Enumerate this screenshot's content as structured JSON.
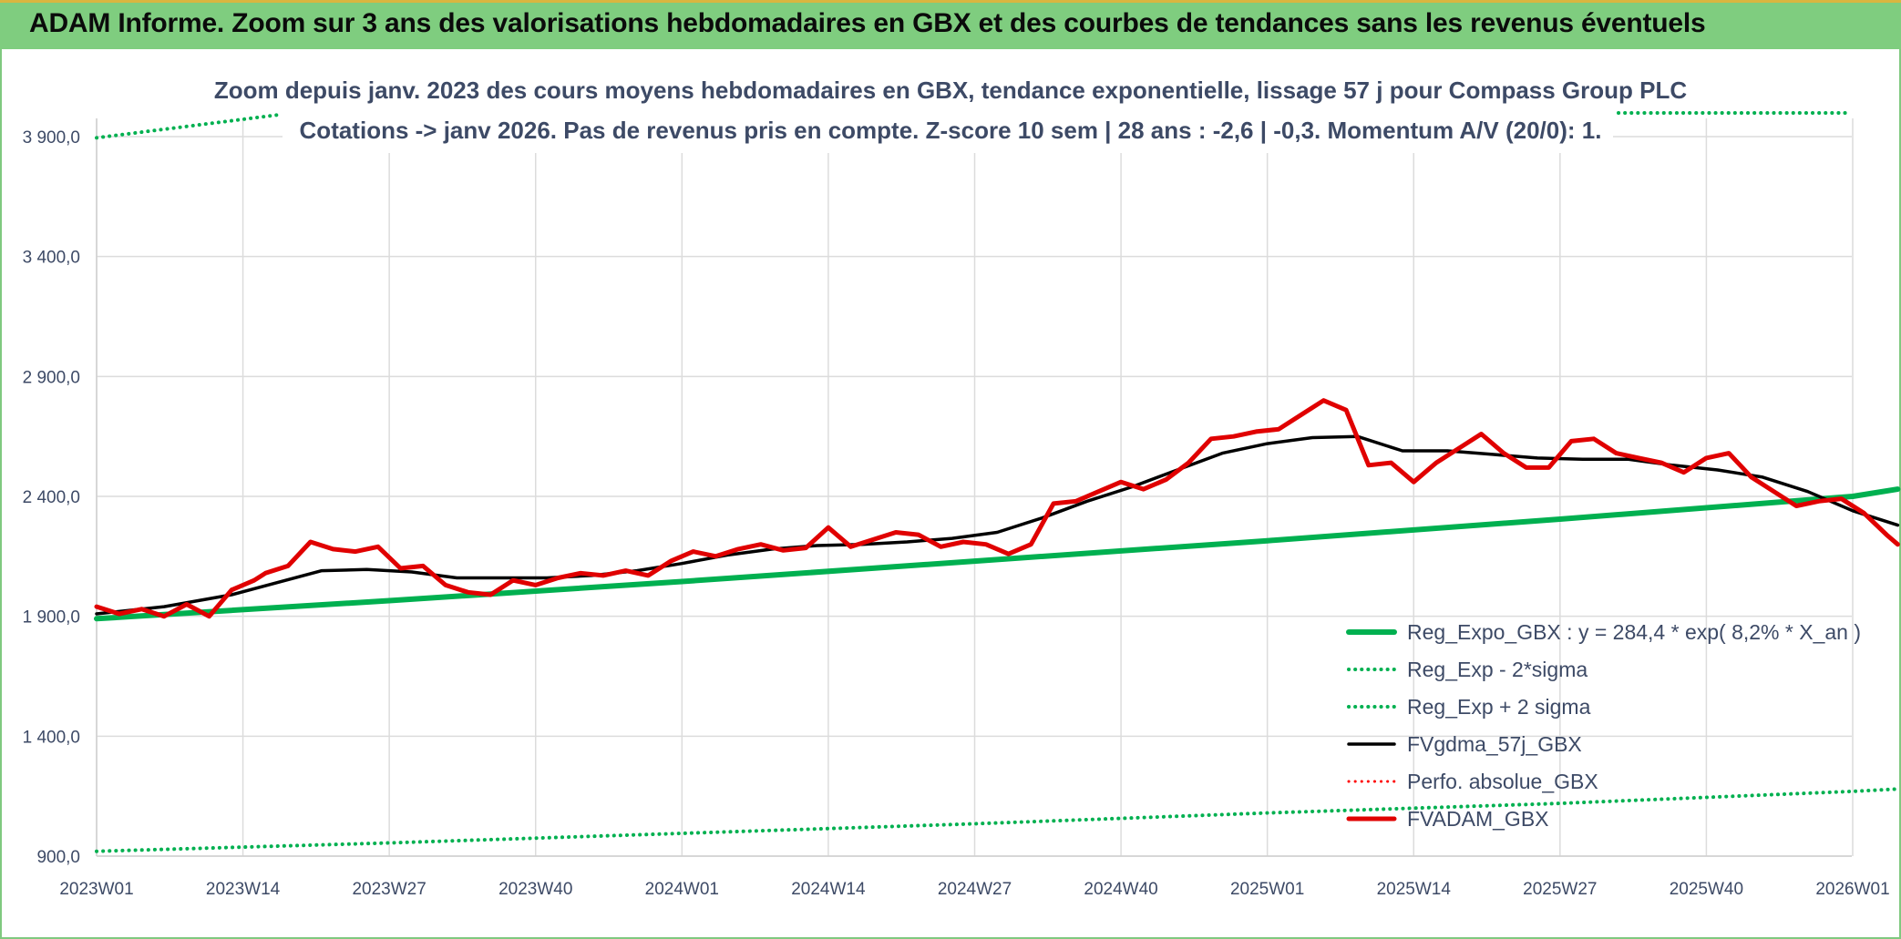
{
  "header": {
    "title": "ADAM Informe. Zoom sur 3 ans des valorisations hebdomadaires en GBX et des courbes de tendances sans les revenus éventuels"
  },
  "chart_data": {
    "type": "line",
    "title_line1": "Zoom depuis janv. 2023 des cours moyens hebdomadaires en GBX, tendance exponentielle, lissage 57 j pour Compass Group PLC",
    "title_line2": "Cotations -> janv 2026. Pas de revenus pris en compte. Z-score 10 sem | 28 ans : -2,6 | -0,3. Momentum A/V (20/0): 1.",
    "y_ticks": [
      "900,0",
      "1 400,0",
      "1 900,0",
      "2 400,0",
      "2 900,0",
      "3 400,0",
      "3 900,0"
    ],
    "y_tick_values": [
      900,
      1400,
      1900,
      2400,
      2900,
      3400,
      3900
    ],
    "ylim": [
      900,
      3900
    ],
    "x_ticks": [
      "2023W01",
      "2023W14",
      "2023W27",
      "2023W40",
      "2024W01",
      "2024W14",
      "2024W27",
      "2024W40",
      "2025W01",
      "2025W14",
      "2025W27",
      "2025W40",
      "2026W01"
    ],
    "x_tick_weeks": [
      0,
      13,
      26,
      39,
      52,
      65,
      78,
      91,
      104,
      117,
      130,
      143,
      156
    ],
    "xlim_weeks": [
      0,
      161
    ],
    "grid": true,
    "legend_position": "bottom-right",
    "series": [
      {
        "name": "Reg_Expo_GBX : y = 284,4 * exp( 8,2% * X_an )",
        "color": "#00b050",
        "style": "solid",
        "width": 6,
        "x": [
          0,
          26,
          52,
          78,
          104,
          130,
          156,
          160
        ],
        "y": [
          1890,
          1965,
          2045,
          2130,
          2215,
          2305,
          2400,
          2430
        ]
      },
      {
        "name": "Reg_Exp - 2*sigma",
        "color": "#00b050",
        "style": "dotted",
        "width": 4,
        "x": [
          0,
          26,
          52,
          78,
          104,
          130,
          156,
          160
        ],
        "y": [
          920,
          955,
          995,
          1035,
          1080,
          1120,
          1170,
          1180
        ]
      },
      {
        "name": "Reg_Exp + 2 sigma",
        "color": "#00b050",
        "style": "dotted",
        "width": 4,
        "x": [
          0,
          16
        ],
        "y": [
          3895,
          3990
        ]
      },
      {
        "name": "FVgdma_57j_GBX",
        "color": "#000000",
        "style": "solid",
        "width": 3.5,
        "x": [
          0,
          6,
          12,
          16,
          20,
          24,
          28,
          32,
          36,
          40,
          44,
          48,
          52,
          56,
          60,
          64,
          68,
          72,
          76,
          80,
          84,
          88,
          92,
          96,
          100,
          104,
          108,
          112,
          116,
          120,
          124,
          128,
          132,
          136,
          140,
          144,
          148,
          152,
          156,
          160
        ],
        "y": [
          1910,
          1940,
          1990,
          2040,
          2090,
          2095,
          2085,
          2060,
          2060,
          2060,
          2070,
          2090,
          2120,
          2155,
          2180,
          2195,
          2200,
          2210,
          2225,
          2250,
          2310,
          2380,
          2440,
          2510,
          2580,
          2620,
          2645,
          2650,
          2590,
          2590,
          2575,
          2560,
          2555,
          2555,
          2530,
          2510,
          2480,
          2420,
          2340,
          2280
        ]
      },
      {
        "name": "Perfo. absolue_GBX",
        "color": "#ff0000",
        "style": "dotted",
        "width": 3,
        "x": [],
        "y": []
      },
      {
        "name": "FVADAM_GBX",
        "color": "#e00000",
        "style": "solid",
        "width": 5,
        "x": [
          0,
          2,
          4,
          6,
          8,
          10,
          12,
          14,
          15,
          17,
          19,
          21,
          23,
          25,
          27,
          29,
          31,
          33,
          35,
          37,
          39,
          41,
          43,
          45,
          47,
          49,
          51,
          53,
          55,
          57,
          59,
          61,
          63,
          65,
          67,
          69,
          71,
          73,
          75,
          77,
          79,
          81,
          83,
          85,
          87,
          89,
          91,
          93,
          95,
          97,
          99,
          101,
          103,
          105,
          107,
          109,
          111,
          113,
          115,
          117,
          119,
          121,
          123,
          125,
          127,
          129,
          131,
          133,
          135,
          137,
          139,
          141,
          143,
          145,
          147,
          149,
          151,
          153,
          155,
          157,
          159,
          160
        ],
        "y": [
          1940,
          1910,
          1930,
          1900,
          1950,
          1900,
          2010,
          2050,
          2080,
          2110,
          2210,
          2180,
          2170,
          2190,
          2100,
          2110,
          2030,
          2000,
          1990,
          2050,
          2030,
          2060,
          2080,
          2070,
          2090,
          2070,
          2130,
          2170,
          2150,
          2180,
          2200,
          2175,
          2185,
          2270,
          2190,
          2220,
          2250,
          2240,
          2190,
          2210,
          2200,
          2160,
          2200,
          2370,
          2380,
          2420,
          2460,
          2430,
          2470,
          2540,
          2640,
          2650,
          2670,
          2680,
          2740,
          2800,
          2760,
          2530,
          2540,
          2460,
          2540,
          2600,
          2660,
          2580,
          2520,
          2520,
          2630,
          2640,
          2580,
          2560,
          2540,
          2500,
          2560,
          2580,
          2480,
          2420,
          2360,
          2380,
          2390,
          2330,
          2240,
          2200
        ]
      }
    ]
  }
}
